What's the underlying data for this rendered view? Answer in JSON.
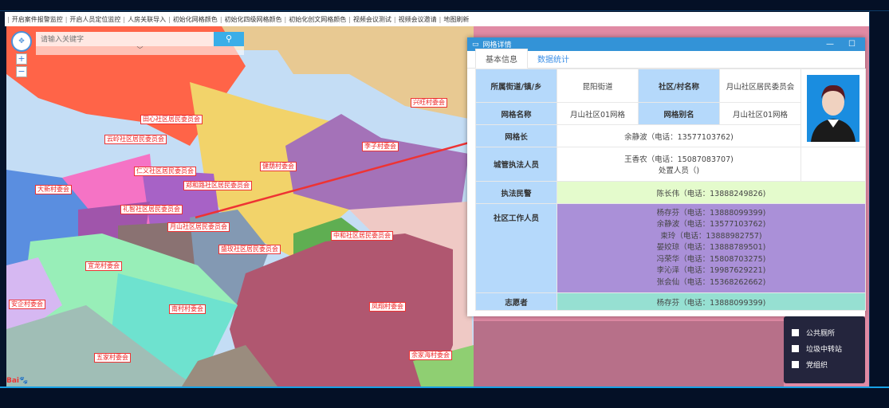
{
  "menu": [
    "开启案件报警监控",
    "开启人员定位监控",
    "人房关联导入",
    "初始化网格颜色",
    "初始化四级网格颜色",
    "初始化创文网格颜色",
    "视频会议测试",
    "视频会议邀请",
    "地图刷新"
  ],
  "search": {
    "placeholder": "请输入关键字",
    "icon": "search-icon"
  },
  "map_labels": [
    {
      "text": "田心社区居民委员会",
      "pos": "a"
    },
    {
      "text": "云岭社区居民委员会",
      "pos": "b"
    },
    {
      "text": "仁义社区居民委员会",
      "pos": "c"
    },
    {
      "text": "郑和路社区居民委员会",
      "pos": "d"
    },
    {
      "text": "大新村委会",
      "pos": "e"
    },
    {
      "text": "礼智社区居民委员会",
      "pos": "f"
    },
    {
      "text": "月山社区居民委员会",
      "pos": "g"
    },
    {
      "text": "盛玫社区居民委员会",
      "pos": "h"
    },
    {
      "text": "中和社区居民委员会",
      "pos": "i"
    },
    {
      "text": "兴旺村委会",
      "pos": "j"
    },
    {
      "text": "李子村委会",
      "pos": "k"
    },
    {
      "text": "健荫村委会",
      "pos": "l"
    },
    {
      "text": "宜龙村委会",
      "pos": "m"
    },
    {
      "text": "安企村委会",
      "pos": "n"
    },
    {
      "text": "南村村委会",
      "pos": "o"
    },
    {
      "text": "凤翔村委会",
      "pos": "p"
    },
    {
      "text": "五家村委会",
      "pos": "q"
    },
    {
      "text": "余家海村委会",
      "pos": "r"
    }
  ],
  "dialog": {
    "title": "网格详情",
    "tabs": [
      {
        "label": "基本信息",
        "active": true
      },
      {
        "label": "数据统计",
        "active": false
      }
    ],
    "fields": {
      "street_label": "所属街道/镇/乡",
      "street": "昆阳街道",
      "community_label": "社区/村名称",
      "community": "月山社区居民委员会",
      "grid_name_label": "网格名称",
      "grid_name": "月山社区01网格",
      "grid_alias_label": "网格别名",
      "grid_alias": "月山社区01网格",
      "leader_label": "网格长",
      "leader": "余静波（电话：13577103762)",
      "enforcer_label": "城管执法人员",
      "enforcer": "王香农（电话：15087083707)",
      "handler": "处置人员（)",
      "police_label": "执法民警",
      "police": "陈长伟（电话：13888249826)",
      "staff_label": "社区工作人员",
      "staff": [
        "杨存芬（电话：13888099399)",
        "余静波（电话：13577103762)",
        "束玲（电话：13888982757)",
        "晏姣琼（电话：13888789501)",
        "冯荣华（电话：15808703275)",
        "李沁泽（电话：19987629221)",
        "张会仙（电话：15368262662)"
      ],
      "volunteer_label": "志愿者",
      "volunteer": "杨存芬（电话：13888099399)"
    },
    "colors": {
      "header": "#b5d9fb",
      "police_bg": "#e4fbcc",
      "staff_bg": "#aa90d8",
      "volunteer_bg": "#96e0d2",
      "title_bar": "#3393d7"
    }
  },
  "legend": [
    {
      "label": "公共厕所",
      "checked": false
    },
    {
      "label": "垃圾中转站",
      "checked": false
    },
    {
      "label": "党组织",
      "checked": false
    }
  ]
}
